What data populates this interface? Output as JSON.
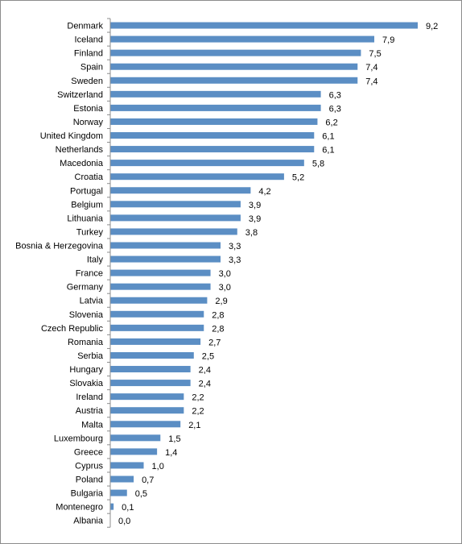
{
  "chart_data": {
    "type": "bar",
    "orientation": "horizontal",
    "bar_color": "#5b8ec4",
    "xlim": [
      0,
      10
    ],
    "grid": false,
    "categories": [
      "Denmark",
      "Iceland",
      "Finland",
      "Spain",
      "Sweden",
      "Switzerland",
      "Estonia",
      "Norway",
      "United Kingdom",
      "Netherlands",
      "Macedonia",
      "Croatia",
      "Portugal",
      "Belgium",
      "Lithuania",
      "Turkey",
      "Bosnia & Herzegovina",
      "Italy",
      "France",
      "Germany",
      "Latvia",
      "Slovenia",
      "Czech Republic",
      "Romania",
      "Serbia",
      "Hungary",
      "Slovakia",
      "Ireland",
      "Austria",
      "Malta",
      "Luxembourg",
      "Greece",
      "Cyprus",
      "Poland",
      "Bulgaria",
      "Montenegro",
      "Albania"
    ],
    "values": [
      9.2,
      7.9,
      7.5,
      7.4,
      7.4,
      6.3,
      6.3,
      6.2,
      6.1,
      6.1,
      5.8,
      5.2,
      4.2,
      3.9,
      3.9,
      3.8,
      3.3,
      3.3,
      3.0,
      3.0,
      2.9,
      2.8,
      2.8,
      2.7,
      2.5,
      2.4,
      2.4,
      2.2,
      2.2,
      2.1,
      1.5,
      1.4,
      1.0,
      0.7,
      0.5,
      0.1,
      0.0
    ],
    "value_labels": [
      "9,2",
      "7,9",
      "7,5",
      "7,4",
      "7,4",
      "6,3",
      "6,3",
      "6,2",
      "6,1",
      "6,1",
      "5,8",
      "5,2",
      "4,2",
      "3,9",
      "3,9",
      "3,8",
      "3,3",
      "3,3",
      "3,0",
      "3,0",
      "2,9",
      "2,8",
      "2,8",
      "2,7",
      "2,5",
      "2,4",
      "2,4",
      "2,2",
      "2,2",
      "2,1",
      "1,5",
      "1,4",
      "1,0",
      "0,7",
      "0,5",
      "0,1",
      "0,0"
    ]
  }
}
